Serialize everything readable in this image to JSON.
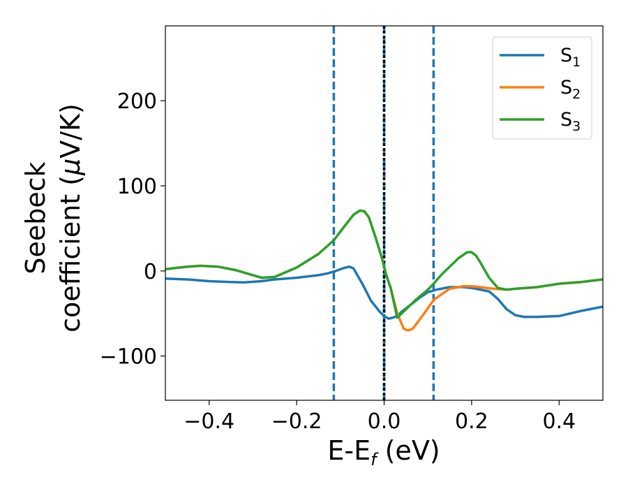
{
  "chart_data": {
    "type": "line",
    "xlabel": {
      "main": "E-E",
      "sub": "f",
      "tail": " (eV)"
    },
    "ylabel": {
      "line1": "Seebeck",
      "line2_pre": "coefficient  (",
      "mu": "μ",
      "line2_post": "V/K)"
    },
    "xlim": [
      -0.5,
      0.5
    ],
    "ylim": [
      -152,
      288
    ],
    "xticks": [
      -0.4,
      -0.2,
      0.0,
      0.2,
      0.4
    ],
    "xtick_labels": [
      "−0.4",
      "−0.2",
      "0.0",
      "0.2",
      "0.4"
    ],
    "yticks": [
      -100,
      0,
      100,
      200
    ],
    "ytick_labels": [
      "−100",
      "0",
      "100",
      "200"
    ],
    "grid": false,
    "legend_position": "top-right",
    "vlines": [
      {
        "x": -0.115,
        "color": "#1f77b4",
        "style": "dashed"
      },
      {
        "x": 0.0,
        "color": "#1f77b4",
        "style": "dashed"
      },
      {
        "x": 0.0,
        "color": "#000000",
        "style": "dotted"
      },
      {
        "x": 0.113,
        "color": "#1f77b4",
        "style": "dashed"
      }
    ],
    "series": [
      {
        "name": "S",
        "sub": "1",
        "color": "#1f77b4",
        "x": [
          -0.5,
          -0.45,
          -0.4,
          -0.35,
          -0.32,
          -0.28,
          -0.25,
          -0.2,
          -0.15,
          -0.13,
          -0.11,
          -0.095,
          -0.08,
          -0.07,
          -0.05,
          -0.03,
          -0.01,
          0.0,
          0.01,
          0.02,
          0.03,
          0.04,
          0.06,
          0.08,
          0.1,
          0.12,
          0.15,
          0.18,
          0.2,
          0.22,
          0.24,
          0.26,
          0.28,
          0.3,
          0.32,
          0.35,
          0.4,
          0.45,
          0.5
        ],
        "y": [
          -9,
          -10,
          -12,
          -13,
          -13.5,
          -12,
          -10,
          -8,
          -5,
          -3,
          0,
          3,
          5,
          3,
          -15,
          -35,
          -48,
          -53,
          -56,
          -55,
          -53,
          -48,
          -40,
          -32,
          -25,
          -22,
          -19,
          -19,
          -20,
          -22,
          -24,
          -33,
          -45,
          -52,
          -54,
          -54,
          -53,
          -47,
          -42
        ]
      },
      {
        "name": "S",
        "sub": "2",
        "color": "#ff7f0e",
        "x": [
          -0.5,
          -0.45,
          -0.42,
          -0.38,
          -0.34,
          -0.3,
          -0.28,
          -0.25,
          -0.2,
          -0.15,
          -0.115,
          -0.09,
          -0.07,
          -0.055,
          -0.045,
          -0.035,
          -0.02,
          -0.005,
          0.005,
          0.015,
          0.03,
          0.045,
          0.055,
          0.065,
          0.08,
          0.1,
          0.113,
          0.13,
          0.15,
          0.18,
          0.2,
          0.22,
          0.25,
          0.28,
          0.3,
          0.35,
          0.4,
          0.45,
          0.5
        ],
        "y": [
          2,
          5,
          6,
          5,
          1,
          -5,
          -8,
          -7,
          4,
          20,
          36,
          53,
          66,
          71,
          70,
          63,
          40,
          15,
          -5,
          -20,
          -50,
          -68,
          -70,
          -68,
          -58,
          -44,
          -34,
          -28,
          -21,
          -18,
          -18,
          -19,
          -21,
          -22,
          -21,
          -19,
          -15,
          -13,
          -10
        ]
      },
      {
        "name": "S",
        "sub": "3",
        "color": "#2ca02c",
        "x": [
          -0.5,
          -0.45,
          -0.42,
          -0.38,
          -0.34,
          -0.3,
          -0.28,
          -0.25,
          -0.2,
          -0.15,
          -0.115,
          -0.09,
          -0.07,
          -0.055,
          -0.045,
          -0.035,
          -0.02,
          -0.005,
          0.005,
          0.015,
          0.03,
          0.05,
          0.07,
          0.1,
          0.113,
          0.13,
          0.15,
          0.17,
          0.19,
          0.2,
          0.21,
          0.22,
          0.24,
          0.26,
          0.28,
          0.3,
          0.35,
          0.4,
          0.45,
          0.5
        ],
        "y": [
          2,
          5,
          6,
          5,
          1,
          -5,
          -8,
          -7,
          4,
          20,
          36,
          53,
          66,
          71,
          70,
          63,
          40,
          15,
          -5,
          -20,
          -55,
          -45,
          -35,
          -22,
          -15,
          -5,
          5,
          15,
          22,
          22,
          18,
          10,
          -8,
          -20,
          -22,
          -21,
          -19,
          -15,
          -13,
          -10
        ]
      }
    ]
  }
}
